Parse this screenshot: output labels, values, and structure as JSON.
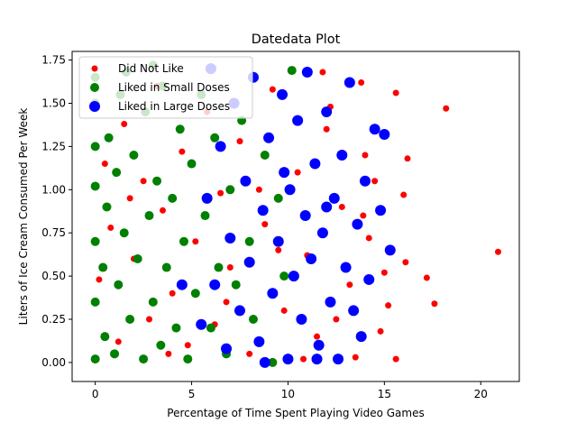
{
  "chart_data": {
    "type": "scatter",
    "title": "Datedata Plot",
    "x_label": "Percentage of Time Spent Playing Video Games",
    "y_label": "Liters of Ice Cream Consumed Per Week",
    "xlim": [
      -1.2,
      22
    ],
    "ylim": [
      -0.11,
      1.8
    ],
    "xticks": [
      0,
      5,
      10,
      15,
      20
    ],
    "yticks": [
      {
        "value": 0,
        "label": "0.00"
      },
      {
        "value": 0.25,
        "label": "0.25"
      },
      {
        "value": 0.5,
        "label": "0.50"
      },
      {
        "value": 0.75,
        "label": "0.75"
      },
      {
        "value": 1,
        "label": "1.00"
      },
      {
        "value": 1.25,
        "label": "1.25"
      },
      {
        "value": 1.5,
        "label": "1.50"
      },
      {
        "value": 1.75,
        "label": "1.75"
      }
    ],
    "legend": "upper left",
    "series": [
      {
        "name": "Did Not Like",
        "color": "#ff0000",
        "size": 3.5,
        "x": [
          20.9,
          18.2,
          17.6,
          17.2,
          16.1,
          16.0,
          15.6,
          15.6,
          15.2,
          15.0,
          16.2,
          14.5,
          14.2,
          13.8,
          13.5,
          14.0,
          13.2,
          12.8,
          12.0,
          11.5,
          11.0,
          10.5,
          9.8,
          9.2,
          8.8,
          8.0,
          7.5,
          7.0,
          6.5,
          6.2,
          5.8,
          5.2,
          4.8,
          4.5,
          4.0,
          3.5,
          3.2,
          2.8,
          2.5,
          2.0,
          1.5,
          1.2,
          0.8,
          0.5,
          0.2,
          1.8,
          3.8,
          6.8,
          9.5,
          10.8,
          12.5,
          13.9,
          14.8,
          12.2,
          11.8,
          8.5
        ],
        "values": [
          0.64,
          1.47,
          0.34,
          0.49,
          0.58,
          0.97,
          0.02,
          1.56,
          0.33,
          0.52,
          1.18,
          1.05,
          0.72,
          1.62,
          0.03,
          1.2,
          0.45,
          0.9,
          1.35,
          0.15,
          0.62,
          1.1,
          0.3,
          1.58,
          0.8,
          0.05,
          1.28,
          0.55,
          0.98,
          0.22,
          1.45,
          0.7,
          0.1,
          1.22,
          0.4,
          0.88,
          1.6,
          0.25,
          1.05,
          0.6,
          1.38,
          0.12,
          0.78,
          1.15,
          0.48,
          0.95,
          0.05,
          0.35,
          0.65,
          0.02,
          0.25,
          0.85,
          0.18,
          1.48,
          1.68,
          1.0
        ]
      },
      {
        "name": "Liked in Small Doses",
        "color": "#008000",
        "size": 5,
        "x": [
          0,
          0,
          0,
          0,
          0,
          0,
          0,
          0.5,
          0.4,
          0.6,
          0.7,
          1.0,
          1.2,
          1.1,
          1.3,
          1.5,
          1.8,
          2.0,
          2.2,
          2.5,
          2.6,
          2.8,
          3.0,
          3.2,
          3.4,
          3.5,
          3.7,
          4.0,
          4.2,
          4.4,
          4.6,
          4.8,
          5.0,
          5.2,
          5.5,
          5.7,
          6.0,
          6.2,
          6.4,
          6.8,
          7.0,
          7.3,
          7.6,
          8.0,
          8.2,
          8.8,
          9.2,
          9.5,
          10.2,
          9.8,
          3.0,
          1.6
        ],
        "values": [
          0.02,
          0.35,
          0.7,
          1.02,
          1.25,
          1.5,
          1.65,
          0.15,
          0.55,
          0.9,
          1.3,
          0.05,
          0.45,
          1.1,
          1.55,
          0.75,
          0.25,
          1.2,
          0.6,
          0.02,
          1.45,
          0.85,
          0.35,
          1.05,
          0.1,
          1.6,
          0.55,
          0.95,
          0.2,
          1.35,
          0.7,
          0.02,
          1.15,
          0.4,
          1.55,
          0.85,
          0.2,
          1.3,
          0.55,
          0.05,
          1.0,
          0.45,
          1.4,
          0.7,
          0.25,
          1.2,
          0.0,
          0.95,
          1.69,
          0.5,
          1.72,
          1.68
        ]
      },
      {
        "name": "Liked in Large Doses",
        "color": "#0000ff",
        "size": 6,
        "x": [
          5.5,
          5.8,
          6.0,
          6.2,
          6.5,
          6.8,
          7.0,
          7.2,
          7.5,
          7.8,
          8.0,
          8.2,
          8.5,
          8.7,
          9.0,
          9.2,
          9.5,
          9.7,
          10.0,
          10.1,
          10.3,
          10.5,
          10.7,
          10.9,
          11.0,
          11.2,
          11.4,
          11.6,
          11.8,
          12.0,
          12.2,
          12.4,
          12.6,
          12.8,
          13.0,
          13.2,
          13.4,
          13.6,
          13.8,
          14.0,
          14.2,
          14.5,
          14.8,
          15.0,
          15.3,
          4.5,
          9.8,
          11.5,
          8.8,
          12.0
        ],
        "values": [
          0.22,
          0.95,
          1.7,
          0.45,
          1.25,
          0.08,
          0.72,
          1.5,
          0.3,
          1.05,
          0.58,
          1.65,
          0.12,
          0.88,
          1.3,
          0.4,
          0.7,
          1.55,
          0.02,
          1.0,
          0.5,
          1.4,
          0.25,
          0.85,
          1.68,
          0.6,
          1.15,
          0.1,
          0.75,
          1.45,
          0.35,
          0.95,
          0.02,
          1.2,
          0.55,
          1.62,
          0.3,
          0.8,
          0.15,
          1.05,
          0.48,
          1.35,
          0.88,
          1.32,
          0.65,
          0.45,
          1.1,
          0.02,
          0.0,
          0.9
        ]
      }
    ]
  }
}
